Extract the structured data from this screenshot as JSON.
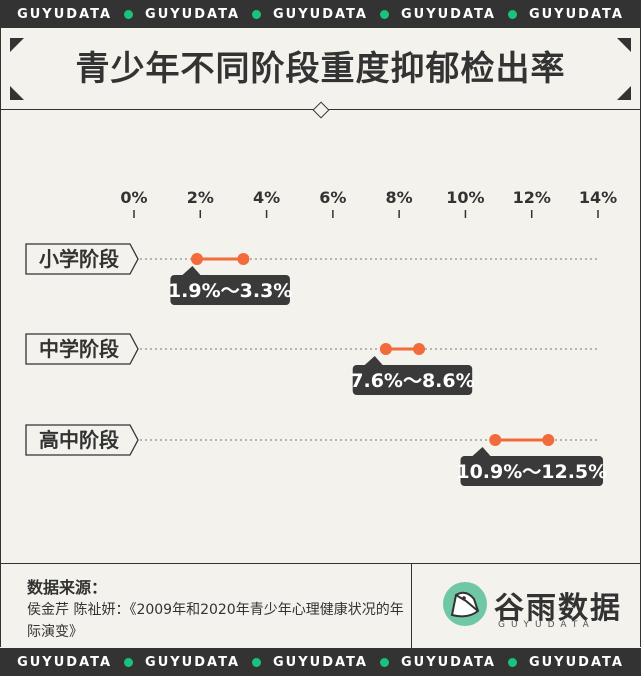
{
  "header": {
    "band_text": "GUYUDATA",
    "title": "青少年不同阶段重度抑郁检出率"
  },
  "chart_data": {
    "type": "range",
    "categories": [
      "小学阶段",
      "中学阶段",
      "高中阶段"
    ],
    "ranges": [
      {
        "low": 1.9,
        "high": 3.3,
        "label": "1.9%～3.3%"
      },
      {
        "low": 7.6,
        "high": 8.6,
        "label": "7.6%～8.6%"
      },
      {
        "low": 10.9,
        "high": 12.5,
        "label": "10.9%～12.5%"
      }
    ],
    "xticks": [
      0,
      2,
      4,
      6,
      8,
      10,
      12,
      14
    ],
    "xtick_labels": [
      "0%",
      "2%",
      "4%",
      "6%",
      "8%",
      "10%",
      "12%",
      "14%"
    ],
    "xlim": [
      0,
      14
    ],
    "accent_color": "#f26b3a"
  },
  "footer": {
    "source_title": "数据来源：",
    "source_text": "侯金芹 陈祉妍：《2009年和2020年青少年心理健康状况的年际演变》",
    "brand_name": "谷雨数据",
    "brand_sub": "GUYUDATA"
  }
}
